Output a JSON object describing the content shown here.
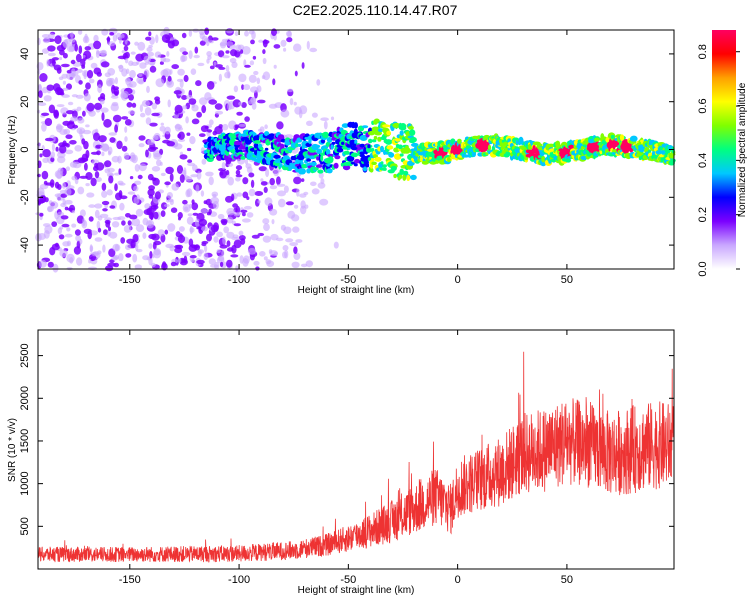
{
  "title": "C2E2.2025.110.14.47.R07",
  "chart_data": [
    {
      "type": "heatmap",
      "xlabel": "Height of straight line (km)",
      "ylabel": "Frequency (Hz)",
      "xlim": [
        -192,
        99
      ],
      "ylim": [
        -50,
        50
      ],
      "xticks": [
        -150,
        -100,
        -50,
        0,
        50
      ],
      "yticks": [
        -40,
        -20,
        0,
        20,
        40
      ],
      "colorbar": {
        "label": "Normalized spectral amplitude",
        "range": [
          0.0,
          0.88
        ],
        "ticks": [
          0.0,
          0.2,
          0.4,
          0.6,
          0.8
        ],
        "colormap": [
          "#ffffff",
          "#c9a7ff",
          "#7b00ff",
          "#0000ff",
          "#00c8ff",
          "#00ff80",
          "#80ff00",
          "#ffff00",
          "#ffa000",
          "#ff0000",
          "#ff0060"
        ]
      },
      "band": {
        "x_range": [
          -115,
          99
        ],
        "center_freq": 0,
        "half_width": [
          4,
          12
        ],
        "peak_x": [
          -8,
          0,
          12,
          35,
          50,
          63,
          72,
          78
        ]
      },
      "noise_region": {
        "x_range": [
          -192,
          -70
        ],
        "freq_range": [
          -50,
          50
        ]
      }
    },
    {
      "type": "line",
      "xlabel": "Height of straight line (km)",
      "ylabel": "SNR (10 * v/v)",
      "xlim": [
        -192,
        99
      ],
      "ylim": [
        0,
        2800
      ],
      "xticks": [
        -150,
        -100,
        -50,
        0,
        50
      ],
      "yticks": [
        500,
        1000,
        1500,
        2000,
        2500
      ],
      "color": "#ee3333",
      "envelope": {
        "x": [
          -192,
          -150,
          -100,
          -75,
          -60,
          -50,
          -40,
          -30,
          -20,
          -10,
          -3,
          0,
          10,
          20,
          30,
          40,
          50,
          60,
          70,
          80,
          90,
          99
        ],
        "mean": [
          170,
          170,
          180,
          220,
          280,
          360,
          450,
          560,
          700,
          850,
          700,
          950,
          1050,
          1150,
          1350,
          1400,
          1500,
          1450,
          1350,
          1400,
          1450,
          1450
        ],
        "spread": [
          90,
          90,
          100,
          110,
          130,
          160,
          200,
          250,
          300,
          350,
          300,
          350,
          380,
          420,
          480,
          500,
          520,
          500,
          500,
          520,
          520,
          500
        ]
      }
    }
  ]
}
